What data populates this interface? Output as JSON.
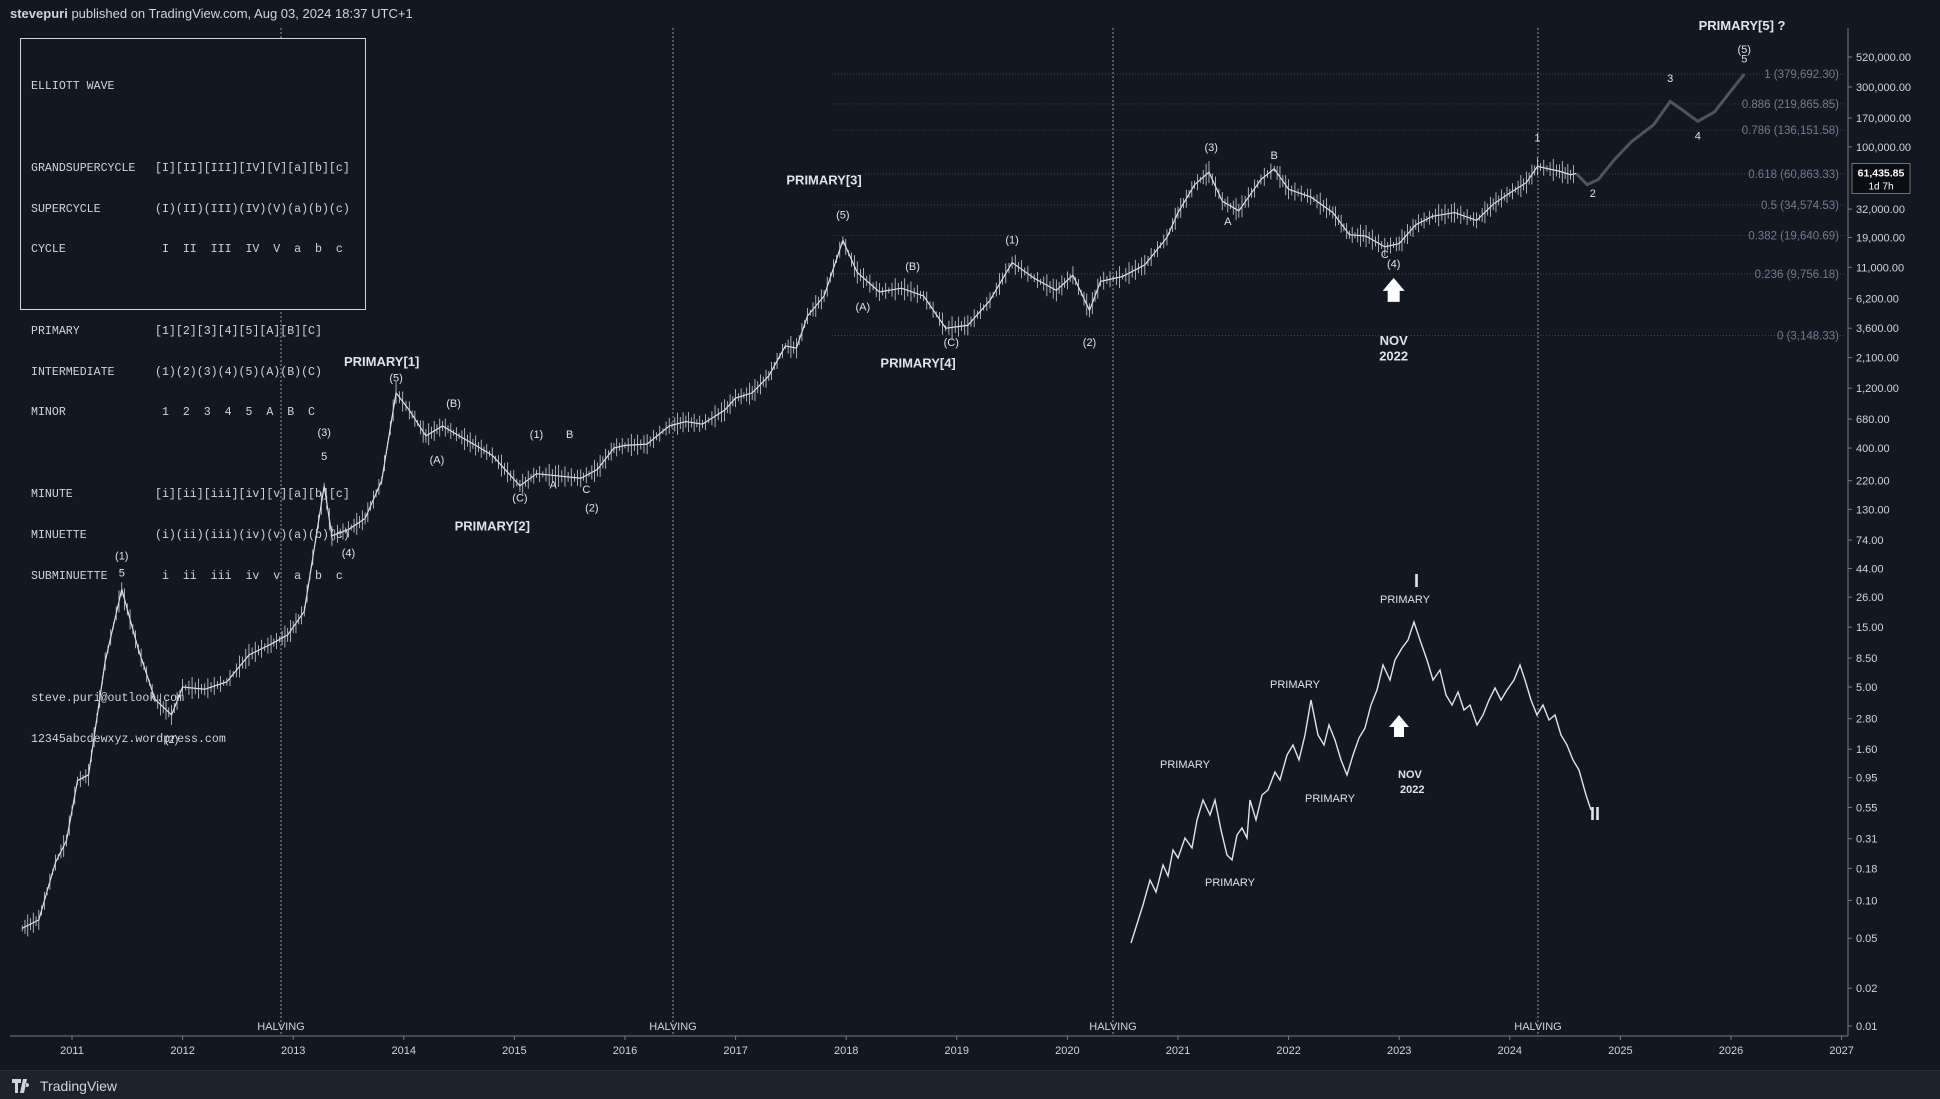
{
  "header": {
    "author": "stevepuri",
    "published_text": "published on TradingView.com, Aug 03, 2024 18:37 UTC+1"
  },
  "footer": {
    "logo_text": "TradingView"
  },
  "legend": {
    "title": "ELLIOTT WAVE",
    "group1": [
      {
        "k": "GRANDSUPERCYCLE",
        "v": "[I][II][III][IV][V][a][b][c]"
      },
      {
        "k": "SUPERCYCLE",
        "v": "(I)(II)(III)(IV)(V)(a)(b)(c)"
      },
      {
        "k": "CYCLE",
        "v": " I  II  III  IV  V  a  b  c"
      }
    ],
    "group2": [
      {
        "k": "PRIMARY",
        "v": "[1][2][3][4][5][A][B][C]"
      },
      {
        "k": "INTERMEDIATE",
        "v": "(1)(2)(3)(4)(5)(A)(B)(C)"
      },
      {
        "k": "MINOR",
        "v": " 1  2  3  4  5  A  B  C"
      }
    ],
    "group3": [
      {
        "k": "MINUTE",
        "v": "[i][ii][iii][iv][v][a][b][c]"
      },
      {
        "k": "MINUETTE",
        "v": "(i)(ii)(iii)(iv)(v)(a)(b)(c)"
      },
      {
        "k": "SUBMINUETTE",
        "v": " i  ii  iii  iv  v  a  b  c"
      }
    ],
    "email": "steve.puri@outlook.com",
    "site": "12345abcdewxyz.wordpress.com"
  },
  "chart_data": {
    "type": "line",
    "y_scale": "log",
    "x_ticks": [
      "2011",
      "2012",
      "2013",
      "2014",
      "2015",
      "2016",
      "2017",
      "2018",
      "2019",
      "2020",
      "2021",
      "2022",
      "2023",
      "2024",
      "2025",
      "2026",
      "2027"
    ],
    "y_ticks": [
      "520,000.00",
      "300,000.00",
      "170,000.00",
      "100,000.00",
      "32,000.00",
      "19,000.00",
      "11,000.00",
      "6,200.00",
      "3,600.00",
      "2,100.00",
      "1,200.00",
      "680.00",
      "400.00",
      "220.00",
      "130.00",
      "74.00",
      "44.00",
      "26.00",
      "15.00",
      "8.50",
      "5.00",
      "2.80",
      "1.60",
      "0.95",
      "0.55",
      "0.31",
      "0.18",
      "0.10",
      "0.05",
      "0.02",
      "0.01"
    ],
    "last_price": "61,435.85",
    "last_price_sub": "1d 7h",
    "halvings": [
      {
        "x": 2012.9,
        "label": "HALVING"
      },
      {
        "x": 2016.5,
        "label": "HALVING"
      },
      {
        "x": 2020.4,
        "label": "HALVING"
      },
      {
        "x": 2024.3,
        "label": "HALVING"
      }
    ],
    "fib_levels": [
      {
        "label": "1 (379,692.30)",
        "value": 379692.3
      },
      {
        "label": "0.886 (219,865.85)",
        "value": 219865.85
      },
      {
        "label": "0.786 (136,151.58)",
        "value": 136151.58
      },
      {
        "label": "0.618 (60,863.33)",
        "value": 60863.33
      },
      {
        "label": "0.5 (34,574.53)",
        "value": 34574.53
      },
      {
        "label": "0.382 (19,640.69)",
        "value": 19640.69
      },
      {
        "label": "0.236 (9,756.18)",
        "value": 9756.18
      },
      {
        "label": "0 (3,148.33)",
        "value": 3148.33
      }
    ],
    "price_series": [
      [
        2010.55,
        0.06
      ],
      [
        2010.7,
        0.07
      ],
      [
        2010.85,
        0.2
      ],
      [
        2010.95,
        0.3
      ],
      [
        2011.05,
        0.9
      ],
      [
        2011.15,
        1.0
      ],
      [
        2011.3,
        8
      ],
      [
        2011.45,
        30
      ],
      [
        2011.6,
        10
      ],
      [
        2011.75,
        4
      ],
      [
        2011.9,
        3
      ],
      [
        2012.0,
        5
      ],
      [
        2012.2,
        4.8
      ],
      [
        2012.4,
        5.5
      ],
      [
        2012.6,
        9
      ],
      [
        2012.8,
        11
      ],
      [
        2012.95,
        13
      ],
      [
        2013.1,
        20
      ],
      [
        2013.28,
        200
      ],
      [
        2013.35,
        80
      ],
      [
        2013.5,
        90
      ],
      [
        2013.65,
        110
      ],
      [
        2013.8,
        220
      ],
      [
        2013.93,
        1100
      ],
      [
        2014.05,
        800
      ],
      [
        2014.2,
        500
      ],
      [
        2014.35,
        600
      ],
      [
        2014.5,
        500
      ],
      [
        2014.65,
        420
      ],
      [
        2014.8,
        350
      ],
      [
        2015.05,
        200
      ],
      [
        2015.2,
        250
      ],
      [
        2015.4,
        240
      ],
      [
        2015.6,
        230
      ],
      [
        2015.75,
        270
      ],
      [
        2015.9,
        400
      ],
      [
        2016.0,
        420
      ],
      [
        2016.2,
        430
      ],
      [
        2016.4,
        600
      ],
      [
        2016.55,
        650
      ],
      [
        2016.7,
        620
      ],
      [
        2016.9,
        800
      ],
      [
        2017.0,
        1000
      ],
      [
        2017.15,
        1100
      ],
      [
        2017.3,
        1500
      ],
      [
        2017.45,
        2600
      ],
      [
        2017.55,
        2500
      ],
      [
        2017.65,
        4500
      ],
      [
        2017.8,
        6500
      ],
      [
        2017.97,
        18000
      ],
      [
        2018.1,
        10000
      ],
      [
        2018.3,
        7000
      ],
      [
        2018.5,
        7500
      ],
      [
        2018.7,
        6500
      ],
      [
        2018.9,
        3600
      ],
      [
        2019.1,
        3800
      ],
      [
        2019.3,
        6000
      ],
      [
        2019.5,
        12000
      ],
      [
        2019.7,
        9000
      ],
      [
        2019.9,
        7200
      ],
      [
        2020.05,
        9500
      ],
      [
        2020.2,
        5000
      ],
      [
        2020.3,
        8500
      ],
      [
        2020.5,
        9300
      ],
      [
        2020.7,
        11500
      ],
      [
        2020.9,
        19000
      ],
      [
        2021.0,
        30000
      ],
      [
        2021.15,
        50000
      ],
      [
        2021.28,
        63000
      ],
      [
        2021.4,
        37000
      ],
      [
        2021.55,
        31000
      ],
      [
        2021.75,
        55000
      ],
      [
        2021.87,
        67000
      ],
      [
        2022.0,
        46000
      ],
      [
        2022.2,
        40000
      ],
      [
        2022.4,
        30000
      ],
      [
        2022.55,
        20000
      ],
      [
        2022.7,
        19500
      ],
      [
        2022.87,
        16000
      ],
      [
        2023.0,
        17000
      ],
      [
        2023.15,
        24000
      ],
      [
        2023.3,
        28000
      ],
      [
        2023.5,
        30000
      ],
      [
        2023.7,
        26000
      ],
      [
        2023.85,
        35000
      ],
      [
        2024.0,
        43000
      ],
      [
        2024.15,
        52000
      ],
      [
        2024.25,
        70000
      ],
      [
        2024.45,
        64000
      ],
      [
        2024.55,
        60000
      ],
      [
        2024.6,
        61435
      ]
    ],
    "projection_series": [
      [
        2024.6,
        61435
      ],
      [
        2024.7,
        50000
      ],
      [
        2024.8,
        55000
      ],
      [
        2024.95,
        80000
      ],
      [
        2025.1,
        110000
      ],
      [
        2025.3,
        150000
      ],
      [
        2025.45,
        230000
      ],
      [
        2025.55,
        200000
      ],
      [
        2025.7,
        160000
      ],
      [
        2025.85,
        190000
      ],
      [
        2026.0,
        280000
      ],
      [
        2026.12,
        379692
      ]
    ],
    "wave_labels": [
      {
        "t": "PRIMARY[1]",
        "x": 2013.8,
        "y": 1800,
        "bold": true
      },
      {
        "t": "(5)",
        "x": 2013.93,
        "y": 1350
      },
      {
        "t": "PRIMARY[2]",
        "x": 2014.8,
        "y": 88,
        "bold": true
      },
      {
        "t": "PRIMARY[3]",
        "x": 2017.8,
        "y": 50000,
        "bold": true
      },
      {
        "t": "(5)",
        "x": 2017.97,
        "y": 27000
      },
      {
        "t": "PRIMARY[4]",
        "x": 2018.65,
        "y": 1750,
        "bold": true
      },
      {
        "t": "PRIMARY[5] ?",
        "x": 2026.1,
        "y": 850000,
        "bold": true
      },
      {
        "t": "(5)",
        "x": 2026.12,
        "y": 560000
      },
      {
        "t": "5",
        "x": 2026.12,
        "y": 470000
      },
      {
        "t": "(1)",
        "x": 2011.45,
        "y": 52
      },
      {
        "t": "5",
        "x": 2011.45,
        "y": 38
      },
      {
        "t": "(2)",
        "x": 2011.9,
        "y": 1.8
      },
      {
        "t": "(3)",
        "x": 2013.28,
        "y": 500
      },
      {
        "t": "5",
        "x": 2013.28,
        "y": 320
      },
      {
        "t": "(4)",
        "x": 2013.5,
        "y": 55
      },
      {
        "t": "(A)",
        "x": 2014.3,
        "y": 300
      },
      {
        "t": "(B)",
        "x": 2014.45,
        "y": 850
      },
      {
        "t": "(C)",
        "x": 2015.05,
        "y": 150
      },
      {
        "t": "(1)",
        "x": 2015.2,
        "y": 480
      },
      {
        "t": "A",
        "x": 2015.35,
        "y": 190
      },
      {
        "t": "B",
        "x": 2015.5,
        "y": 480
      },
      {
        "t": "C",
        "x": 2015.65,
        "y": 175
      },
      {
        "t": "(2)",
        "x": 2015.7,
        "y": 125
      },
      {
        "t": "NOV",
        "x": 2022.95,
        "y": 2650,
        "bold": true
      },
      {
        "t": "2022",
        "x": 2022.95,
        "y": 2000,
        "bold": true
      },
      {
        "t": "(4)",
        "x": 2022.95,
        "y": 11000
      },
      {
        "t": "(3)",
        "x": 2021.3,
        "y": 93000
      },
      {
        "t": "B",
        "x": 2021.87,
        "y": 80000
      },
      {
        "t": "A",
        "x": 2021.45,
        "y": 24000
      },
      {
        "t": "C",
        "x": 2022.87,
        "y": 13000
      },
      {
        "t": "(B)",
        "x": 2018.6,
        "y": 10500
      },
      {
        "t": "(A)",
        "x": 2018.15,
        "y": 5000
      },
      {
        "t": "(C)",
        "x": 2018.95,
        "y": 2600
      },
      {
        "t": "(1)",
        "x": 2019.5,
        "y": 17000
      },
      {
        "t": "(2)",
        "x": 2020.2,
        "y": 2600
      },
      {
        "t": "HALVING",
        "x": 0,
        "y": 0,
        "hidden": true
      },
      {
        "t": "3",
        "x": 2025.45,
        "y": 330000
      },
      {
        "t": "4",
        "x": 2025.7,
        "y": 115000
      },
      {
        "t": "2",
        "x": 2024.75,
        "y": 40000
      },
      {
        "t": "1",
        "x": 2024.25,
        "y": 110000
      }
    ],
    "inset_labels": [
      {
        "t": "I",
        "x": 1414,
        "y": 587
      },
      {
        "t": "II",
        "x": 1590,
        "y": 820
      },
      {
        "t": "PRIMARY",
        "x": 1380,
        "y": 603
      },
      {
        "t": "PRIMARY",
        "x": 1270,
        "y": 688
      },
      {
        "t": "PRIMARY",
        "x": 1160,
        "y": 768
      },
      {
        "t": "PRIMARY",
        "x": 1305,
        "y": 802
      },
      {
        "t": "PRIMARY",
        "x": 1205,
        "y": 886
      },
      {
        "t": "NOV",
        "x": 1398,
        "y": 778
      },
      {
        "t": "2022",
        "x": 1400,
        "y": 793
      }
    ]
  }
}
